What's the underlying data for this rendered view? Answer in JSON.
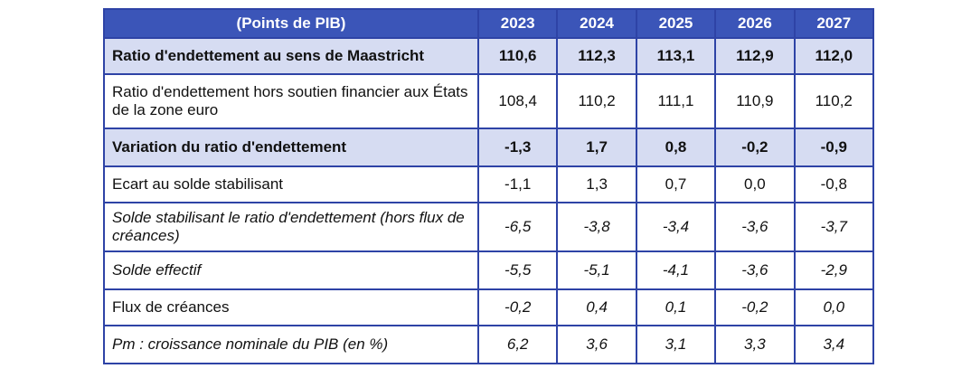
{
  "table": {
    "header": {
      "label": "(Points de PIB)",
      "years": [
        "2023",
        "2024",
        "2025",
        "2026",
        "2027"
      ]
    },
    "rows": [
      {
        "label": "Ratio d'endettement au sens de Maastricht",
        "values": [
          "110,6",
          "112,3",
          "113,1",
          "112,9",
          "112,0"
        ],
        "bold": true,
        "italic": false
      },
      {
        "label": "Ratio d'endettement hors soutien financier aux États de la zone euro",
        "values": [
          "108,4",
          "110,2",
          "111,1",
          "110,9",
          "110,2"
        ],
        "bold": false,
        "italic": false
      },
      {
        "label": "Variation du ratio d'endettement",
        "values": [
          "-1,3",
          "1,7",
          "0,8",
          "-0,2",
          "-0,9"
        ],
        "bold": true,
        "italic": false
      },
      {
        "label": "Ecart au solde stabilisant",
        "values": [
          "-1,1",
          "1,3",
          "0,7",
          "0,0",
          "-0,8"
        ],
        "bold": false,
        "italic": false
      },
      {
        "label": "Solde stabilisant le ratio d'endettement (hors flux de créances)",
        "values": [
          "-6,5",
          "-3,8",
          "-3,4",
          "-3,6",
          "-3,7"
        ],
        "bold": false,
        "italic": true
      },
      {
        "label": "Solde effectif",
        "values": [
          "-5,5",
          "-5,1",
          "-4,1",
          "-3,6",
          "-2,9"
        ],
        "bold": false,
        "italic": true
      },
      {
        "label": "Flux de créances",
        "values": [
          "-0,2",
          "0,4",
          "0,1",
          "-0,2",
          "0,0"
        ],
        "bold": false,
        "italic": false,
        "italic_values": true
      },
      {
        "label": "Pm : croissance nominale du PIB (en %)",
        "values": [
          "6,2",
          "3,6",
          "3,1",
          "3,3",
          "3,4"
        ],
        "bold": false,
        "italic": true
      }
    ]
  },
  "colors": {
    "header_bg": "#3b55b8",
    "border": "#2e43a6",
    "highlight_bg": "#d6dcf2"
  }
}
